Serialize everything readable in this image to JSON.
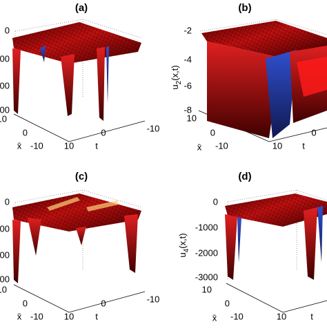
{
  "panels": [
    {
      "title": "(a)",
      "z_ticks": [
        "0",
        "000",
        "000",
        "000"
      ],
      "x_ticks": [
        "10",
        "0",
        "-10"
      ],
      "x_label": "x̄",
      "t_ticks": [
        "10",
        "0",
        "-10"
      ],
      "t_label": "t"
    },
    {
      "title": "(b)",
      "z_label": {
        "base": "u",
        "sub": "2",
        "rest": "(x,t)"
      },
      "z_ticks": [
        "-2",
        "-4",
        "-6",
        "-8"
      ],
      "x_ticks": [
        "10",
        "0",
        "-10"
      ],
      "x_label": "x̄",
      "t_ticks": [
        "10",
        "0"
      ],
      "t_label": "t"
    },
    {
      "title": "(c)",
      "z_ticks": [
        "0",
        "000",
        "000",
        "000"
      ],
      "x_ticks": [
        "10",
        "0",
        "-10"
      ],
      "x_label": "x̄",
      "t_ticks": [
        "10",
        "0",
        "-10"
      ],
      "t_label": "t"
    },
    {
      "title": "(d)",
      "z_label": {
        "base": "u",
        "sub": "4",
        "rest": "(x,t)"
      },
      "z_ticks": [
        "0",
        "-1000",
        "-2000",
        "-3000"
      ],
      "x_ticks": [
        "10",
        "0",
        "-10"
      ],
      "x_label": "x̄",
      "t_ticks": [
        "10"
      ],
      "t_label": "t"
    }
  ]
}
